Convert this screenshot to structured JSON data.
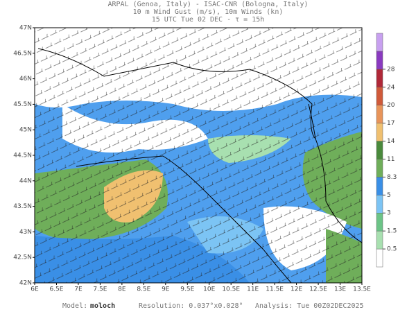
{
  "header": {
    "line1": "ARPAL (Genoa, Italy)  -  ISAC-CNR (Bologna, Italy)",
    "line2": "10 m Wind Gust (m/s), 10m Winds (kn)",
    "line3": "15 UTC Tue 02 DEC  -  τ = 15h"
  },
  "map": {
    "lon_ticks": [
      {
        "value": 6,
        "label": "6E"
      },
      {
        "value": 6.5,
        "label": "6.5E"
      },
      {
        "value": 7,
        "label": "7E"
      },
      {
        "value": 7.5,
        "label": "7.5E"
      },
      {
        "value": 8,
        "label": "8E"
      },
      {
        "value": 8.5,
        "label": "8.5E"
      },
      {
        "value": 9,
        "label": "9E"
      },
      {
        "value": 9.5,
        "label": "9.5E"
      },
      {
        "value": 10,
        "label": "10E"
      },
      {
        "value": 10.5,
        "label": "10.5E"
      },
      {
        "value": 11,
        "label": "11E"
      },
      {
        "value": 11.5,
        "label": "11.5E"
      },
      {
        "value": 12,
        "label": "12E"
      },
      {
        "value": 12.5,
        "label": "12.5E"
      },
      {
        "value": 13,
        "label": "13E"
      },
      {
        "value": 13.5,
        "label": "13.5E"
      }
    ],
    "lat_ticks": [
      {
        "value": 42,
        "label": "42N"
      },
      {
        "value": 42.5,
        "label": "42.5N"
      },
      {
        "value": 43,
        "label": "43N"
      },
      {
        "value": 43.5,
        "label": "43.5N"
      },
      {
        "value": 44,
        "label": "44N"
      },
      {
        "value": 44.5,
        "label": "44.5N"
      },
      {
        "value": 45,
        "label": "45N"
      },
      {
        "value": 45.5,
        "label": "45.5N"
      },
      {
        "value": 46,
        "label": "46N"
      },
      {
        "value": 46.5,
        "label": "46.5N"
      },
      {
        "value": 47,
        "label": "47N"
      }
    ]
  },
  "colorbar": {
    "ticks": [
      0.5,
      1.5,
      3,
      5,
      8.3,
      11,
      14,
      17,
      20,
      24,
      28
    ],
    "colors": [
      "#ffffff",
      "#a8e0b0",
      "#6cc487",
      "#7cc4f4",
      "#3a8fe6",
      "#6fae5a",
      "#4a8a3c",
      "#f0c070",
      "#e8945a",
      "#d05a3a",
      "#b02838",
      "#8a3ac0",
      "#c8a0f0"
    ]
  },
  "footer": {
    "model_label": "Model:",
    "model": "moloch",
    "resolution": "Resolution: 0.037°x0.028°",
    "analysis": "Analysis: Tue 00Z02DEC2025"
  }
}
